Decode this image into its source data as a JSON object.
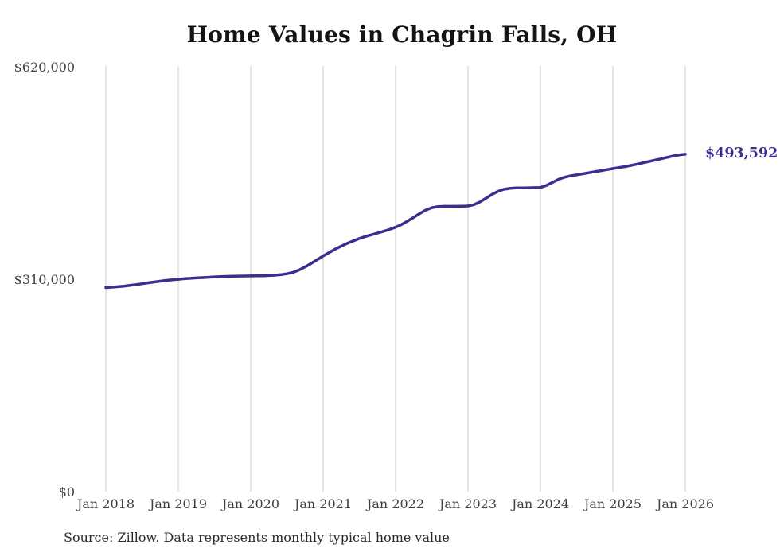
{
  "chart": {
    "title": "Home Values in Chagrin Falls, OH",
    "end_label": "$493,592",
    "source": "Source: Zillow. Data represents monthly typical home value"
  },
  "colors": {
    "background": "#ffffff",
    "line": "#37308f",
    "end_label": "#37308f",
    "title": "#141414",
    "axis_label": "#404040",
    "gridline": "#cbcbcb",
    "source_text": "#2b2b2b"
  },
  "chart_data": {
    "type": "line",
    "title": "Home Values in Chagrin Falls, OH",
    "xlabel": "",
    "ylabel": "",
    "ylim": [
      0,
      620000
    ],
    "grid": "vertical-only",
    "legend": "none",
    "annotation": "$493,592",
    "x_ticks": [
      "Jan 2018",
      "Jan 2019",
      "Jan 2020",
      "Jan 2021",
      "Jan 2022",
      "Jan 2023",
      "Jan 2024",
      "Jan 2025",
      "Jan 2026"
    ],
    "y_ticks": [
      {
        "value": 620000,
        "label": "$620,000"
      },
      {
        "value": 310000,
        "label": "$310,000"
      },
      {
        "value": 0,
        "label": "$0"
      }
    ],
    "series": [
      {
        "name": "Monthly typical home value",
        "frequency": "monthly",
        "start_month": "2018-01",
        "end_month": "2026-01",
        "values": [
          299000,
          299600,
          300300,
          301100,
          302100,
          303300,
          304600,
          305900,
          307100,
          308300,
          309400,
          310300,
          311100,
          311800,
          312400,
          313000,
          313500,
          314000,
          314500,
          314900,
          315200,
          315500,
          315700,
          315800,
          315900,
          316000,
          316200,
          316500,
          317000,
          317800,
          319000,
          321000,
          324500,
          329000,
          334000,
          339500,
          345000,
          350000,
          355000,
          359500,
          363500,
          367000,
          370500,
          373500,
          376000,
          378500,
          381000,
          383800,
          387000,
          391000,
          396000,
          401500,
          407000,
          412000,
          415500,
          417000,
          417500,
          417500,
          417500,
          417800,
          418000,
          420000,
          424000,
          429500,
          435000,
          439500,
          442500,
          443800,
          444300,
          444500,
          444600,
          444800,
          445000,
          448000,
          452500,
          457000,
          460000,
          462000,
          463500,
          465000,
          466500,
          468000,
          469500,
          471000,
          472500,
          474000,
          475500,
          477200,
          479000,
          481000,
          483000,
          485000,
          487000,
          489000,
          491000,
          492500,
          493592
        ]
      }
    ],
    "end_value": 493592,
    "end_label": "$493,592"
  }
}
